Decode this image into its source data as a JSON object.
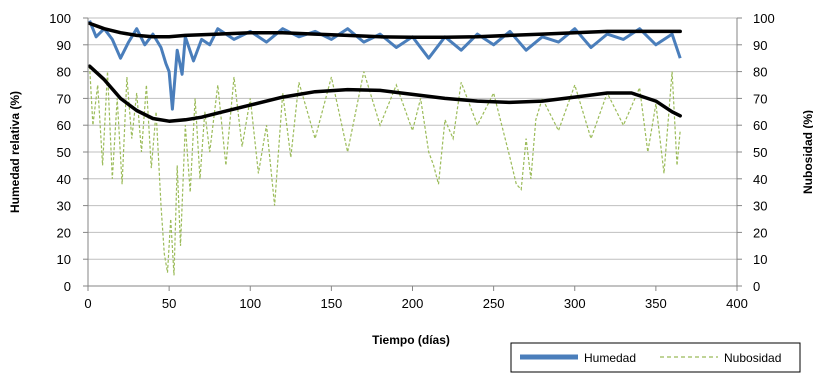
{
  "chart_data": {
    "type": "line",
    "title": "",
    "xlabel": "Tiempo (días)",
    "ylabel": "Humedad relativa (%)",
    "y2label": "Nubosidad (%)",
    "xlim": [
      0,
      400
    ],
    "ylim": [
      0,
      100
    ],
    "y2lim": [
      0,
      100
    ],
    "x_ticks": [
      0,
      50,
      100,
      150,
      200,
      250,
      300,
      350,
      400
    ],
    "y_ticks": [
      0,
      10,
      20,
      30,
      40,
      50,
      60,
      70,
      80,
      90,
      100
    ],
    "y2_ticks": [
      0,
      10,
      20,
      30,
      40,
      50,
      60,
      70,
      80,
      90,
      100
    ],
    "grid": "horizontal",
    "legend_position": "bottom-right",
    "colors": {
      "humedad": "#4a7ebb",
      "nubosidad": "#9bbb59",
      "trend": "#000000",
      "grid": "#bfbfbf"
    },
    "series": [
      {
        "name": "Humedad",
        "style": "solid",
        "x": [
          1,
          5,
          10,
          15,
          20,
          25,
          30,
          35,
          40,
          45,
          48,
          50,
          52,
          55,
          58,
          60,
          65,
          70,
          75,
          80,
          90,
          100,
          110,
          120,
          130,
          140,
          150,
          160,
          170,
          180,
          190,
          200,
          210,
          220,
          230,
          240,
          250,
          260,
          270,
          280,
          290,
          300,
          310,
          320,
          330,
          340,
          350,
          360,
          365
        ],
        "values": [
          99,
          93,
          96,
          92,
          85,
          91,
          96,
          90,
          94,
          89,
          83,
          80,
          66,
          88,
          79,
          93,
          84,
          92,
          90,
          96,
          92,
          95,
          91,
          96,
          93,
          95,
          92,
          96,
          91,
          94,
          89,
          93,
          85,
          93,
          88,
          94,
          90,
          95,
          88,
          93,
          91,
          96,
          89,
          94,
          92,
          96,
          90,
          94,
          85
        ]
      },
      {
        "name": "Nubosidad",
        "style": "dashed",
        "x": [
          1,
          3,
          6,
          9,
          12,
          15,
          18,
          21,
          24,
          27,
          30,
          33,
          36,
          39,
          42,
          45,
          47,
          49,
          51,
          53,
          55,
          57,
          60,
          63,
          66,
          69,
          72,
          75,
          80,
          85,
          90,
          95,
          100,
          105,
          110,
          115,
          120,
          125,
          130,
          140,
          150,
          160,
          170,
          180,
          190,
          200,
          205,
          210,
          213,
          216,
          220,
          225,
          230,
          240,
          250,
          260,
          264,
          267,
          270,
          273,
          276,
          280,
          290,
          300,
          310,
          320,
          330,
          340,
          345,
          350,
          355,
          360,
          363,
          365
        ],
        "values": [
          82,
          60,
          75,
          45,
          80,
          40,
          70,
          38,
          78,
          55,
          72,
          50,
          75,
          44,
          65,
          30,
          12,
          5,
          25,
          4,
          45,
          15,
          60,
          35,
          70,
          40,
          65,
          50,
          75,
          45,
          78,
          52,
          70,
          42,
          60,
          30,
          72,
          48,
          76,
          55,
          78,
          50,
          80,
          60,
          75,
          58,
          70,
          50,
          45,
          38,
          62,
          55,
          76,
          60,
          72,
          48,
          38,
          36,
          55,
          40,
          62,
          70,
          58,
          75,
          55,
          72,
          60,
          74,
          50,
          68,
          42,
          80,
          45,
          58
        ]
      }
    ],
    "trend_lines": [
      {
        "of": "Humedad",
        "x": [
          1,
          10,
          20,
          30,
          40,
          50,
          60,
          80,
          100,
          120,
          140,
          160,
          180,
          200,
          220,
          240,
          260,
          280,
          300,
          320,
          340,
          360,
          365
        ],
        "values": [
          98,
          96,
          94.5,
          93.5,
          93,
          93,
          93.5,
          94,
          94.5,
          94.5,
          94,
          93.5,
          93,
          92.8,
          92.8,
          93,
          93.5,
          94,
          94.5,
          95,
          95,
          95,
          95
        ]
      },
      {
        "of": "Nubosidad",
        "x": [
          1,
          10,
          20,
          30,
          40,
          50,
          60,
          70,
          80,
          90,
          100,
          120,
          140,
          160,
          180,
          200,
          220,
          240,
          260,
          280,
          300,
          320,
          335,
          350,
          360,
          365
        ],
        "values": [
          82,
          77,
          70,
          65.5,
          62.5,
          61.5,
          62,
          63,
          64.5,
          66,
          67.5,
          70.5,
          72.5,
          73.3,
          73,
          71.5,
          70,
          69,
          68.5,
          69,
          70.5,
          72,
          72,
          69,
          65,
          63.5
        ]
      }
    ],
    "legend": [
      "Humedad",
      "Nubosidad"
    ]
  }
}
